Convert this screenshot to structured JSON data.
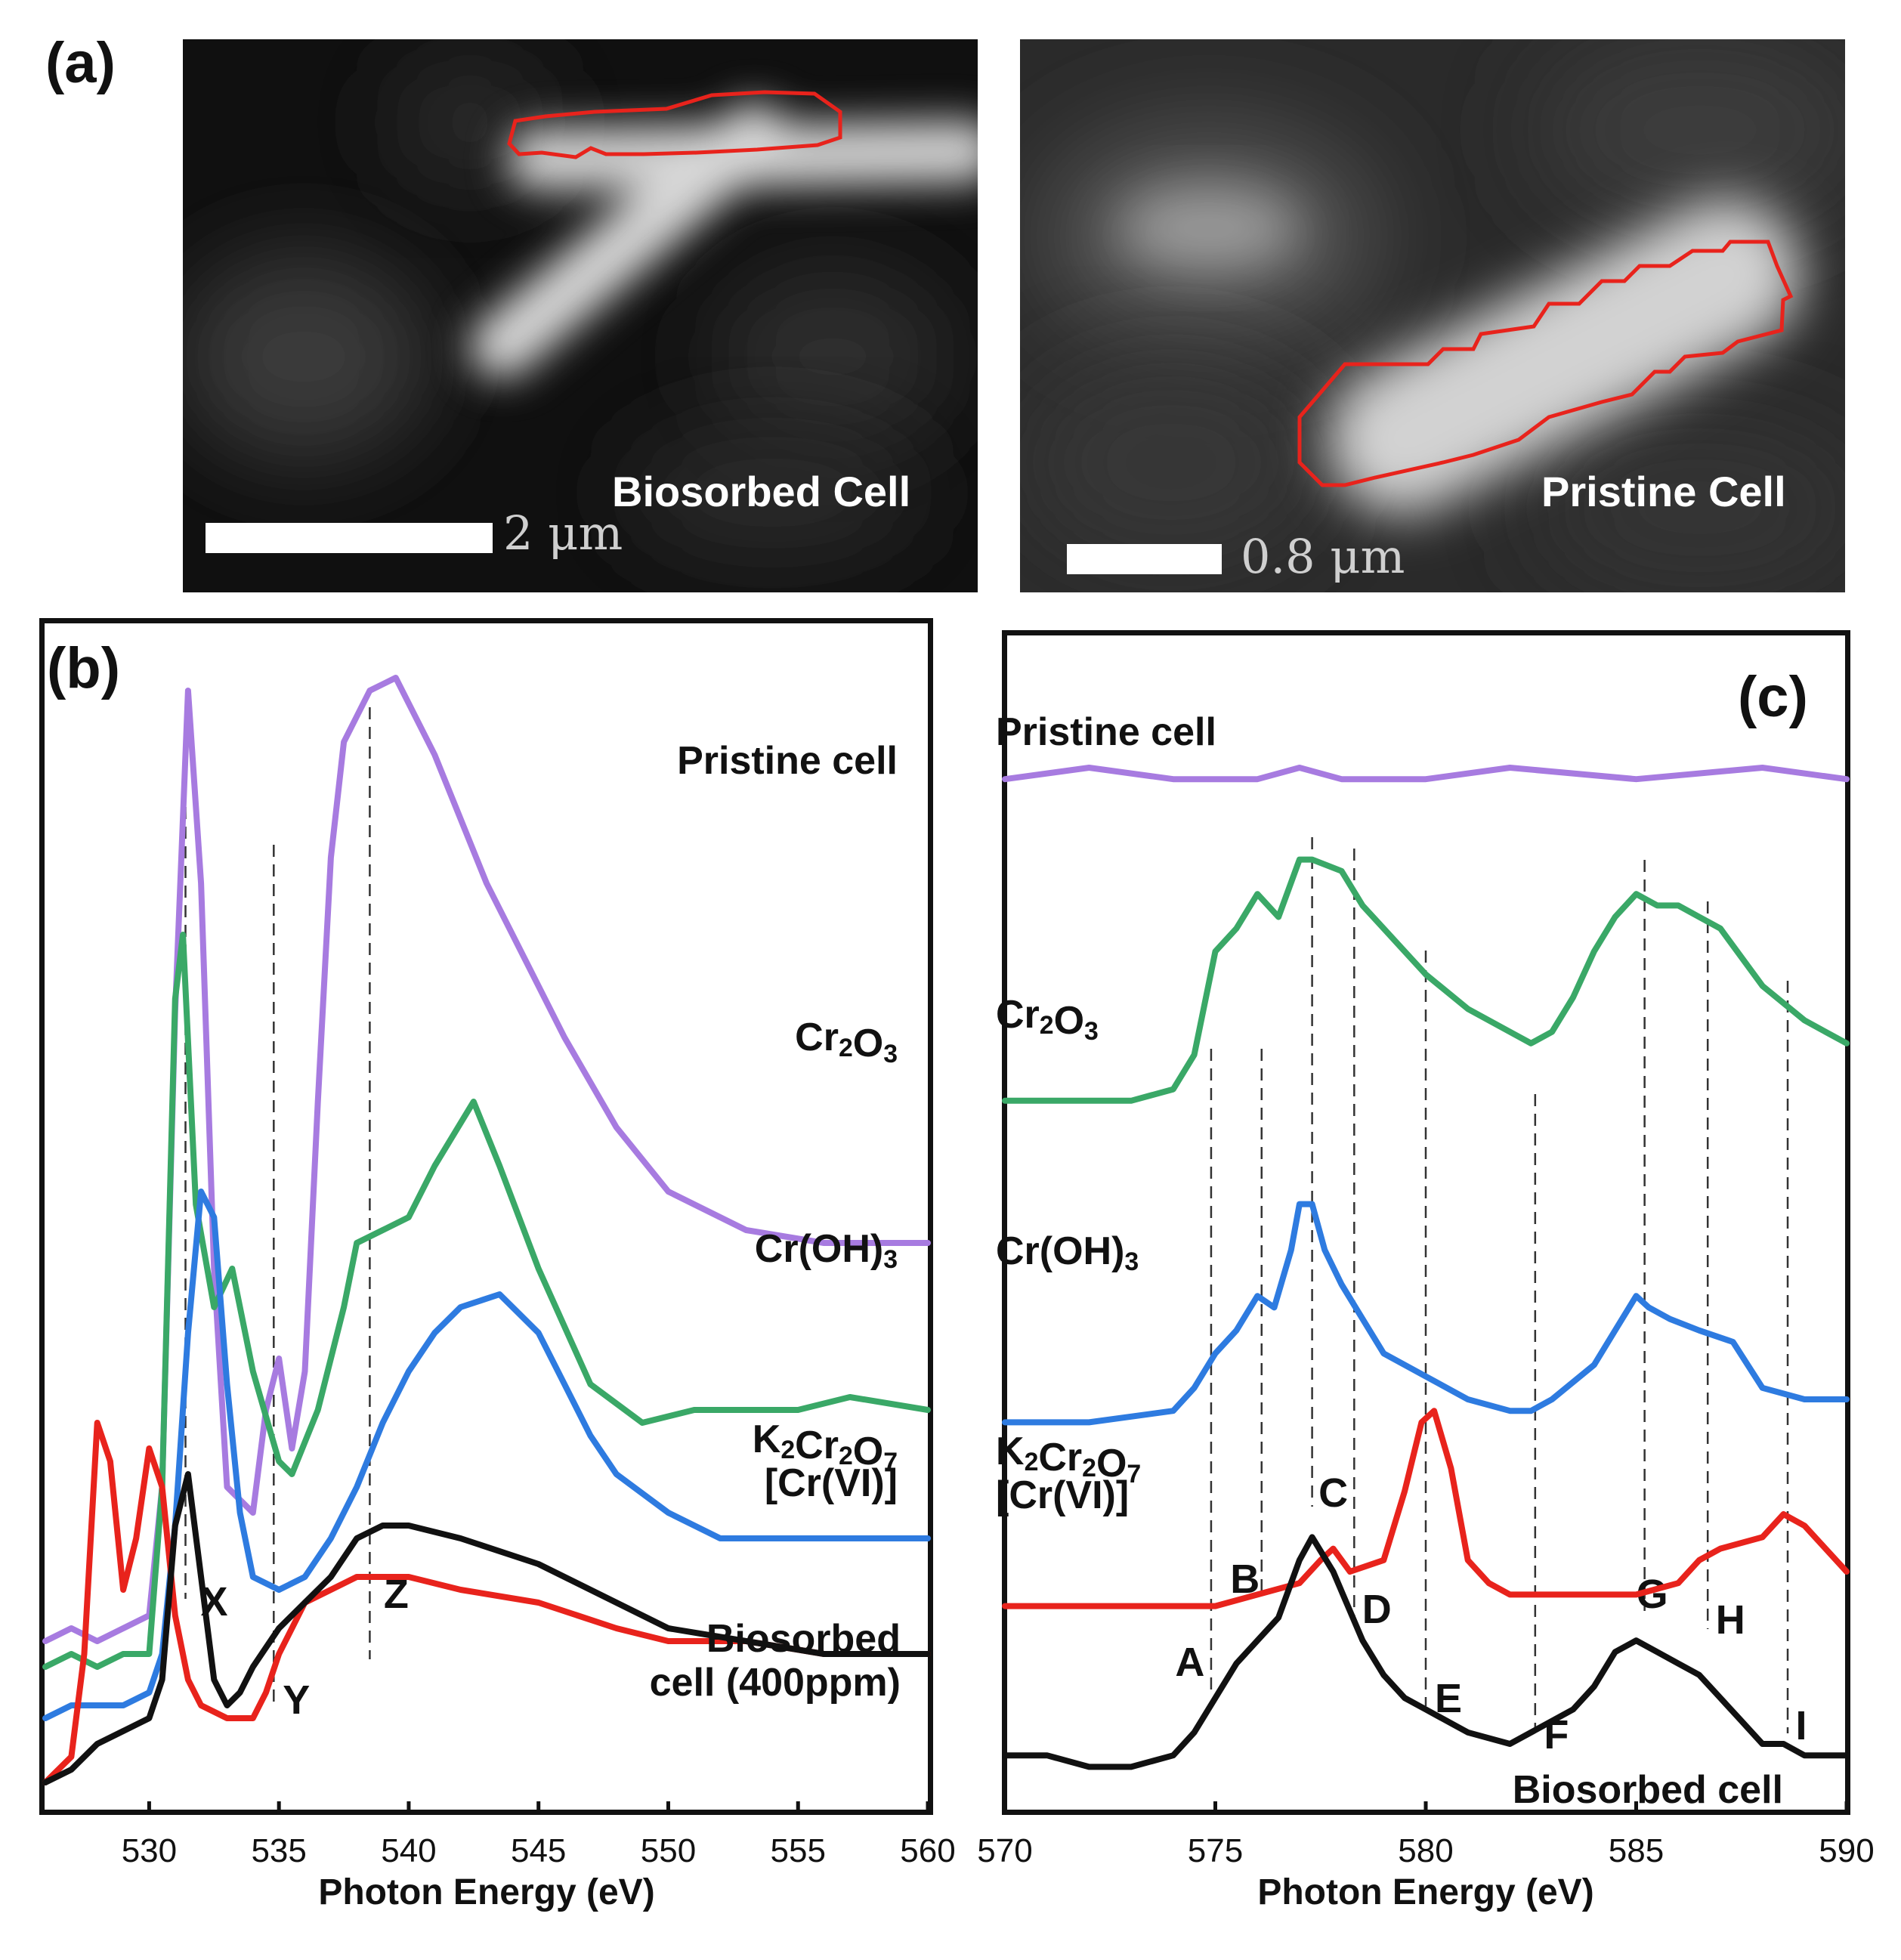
{
  "panel_a": {
    "letter": "(a)",
    "left_image": {
      "label": "Biosorbed Cell",
      "scale_text": "2 μm"
    },
    "right_image": {
      "label": "Pristine Cell",
      "scale_text": "0.8 μm"
    }
  },
  "chart_data": [
    {
      "panel": "(b)",
      "type": "line",
      "xlabel": "Photon Energy (eV)",
      "ylabel": "",
      "xlim": [
        526,
        560
      ],
      "xticks": [
        530,
        535,
        540,
        545,
        550,
        555,
        560
      ],
      "stacked_offset": true,
      "series": [
        {
          "name": "Pristine cell",
          "color": "#a77be0",
          "label_lines": [
            "Pristine cell"
          ],
          "x": [
            526,
            527,
            528,
            529,
            530,
            530.5,
            531,
            531.5,
            532,
            532.5,
            533,
            534,
            534.5,
            535,
            535.5,
            536,
            536.5,
            537,
            537.5,
            538.5,
            539.5,
            541,
            543,
            546,
            548,
            550,
            553,
            556,
            560
          ],
          "y": [
            0.13,
            0.14,
            0.13,
            0.14,
            0.15,
            0.25,
            0.62,
            0.87,
            0.72,
            0.42,
            0.25,
            0.23,
            0.31,
            0.35,
            0.28,
            0.34,
            0.55,
            0.74,
            0.83,
            0.87,
            0.88,
            0.82,
            0.72,
            0.6,
            0.53,
            0.48,
            0.45,
            0.44,
            0.44
          ]
        },
        {
          "name": "Cr2O3",
          "color": "#3aa867",
          "label_lines": [
            "Cr2O3"
          ],
          "x": [
            526,
            527,
            528,
            529,
            530,
            530.5,
            531,
            531.3,
            531.8,
            532.5,
            533.2,
            534,
            535,
            535.5,
            536.5,
            537.5,
            538,
            539,
            540,
            541,
            542.5,
            543.5,
            545,
            547,
            549,
            551,
            553,
            555,
            557,
            560
          ],
          "y": [
            0.11,
            0.12,
            0.11,
            0.12,
            0.12,
            0.25,
            0.63,
            0.68,
            0.47,
            0.39,
            0.42,
            0.34,
            0.27,
            0.26,
            0.31,
            0.39,
            0.44,
            0.45,
            0.46,
            0.5,
            0.55,
            0.5,
            0.42,
            0.33,
            0.3,
            0.31,
            0.31,
            0.31,
            0.32,
            0.31
          ]
        },
        {
          "name": "Cr(OH)3",
          "color": "#2e7be0",
          "label_lines": [
            "Cr(OH)3"
          ],
          "x": [
            526,
            527,
            528,
            529,
            530,
            530.5,
            531,
            531.5,
            532,
            532.5,
            533,
            533.5,
            534,
            535,
            536,
            537,
            538,
            539,
            540,
            541,
            542,
            543.5,
            545,
            546,
            547,
            548,
            550,
            552,
            555,
            560
          ],
          "y": [
            0.07,
            0.08,
            0.08,
            0.08,
            0.09,
            0.12,
            0.22,
            0.37,
            0.48,
            0.46,
            0.33,
            0.23,
            0.18,
            0.17,
            0.18,
            0.21,
            0.25,
            0.3,
            0.34,
            0.37,
            0.39,
            0.4,
            0.37,
            0.33,
            0.29,
            0.26,
            0.23,
            0.21,
            0.21,
            0.21
          ]
        },
        {
          "name": "K2Cr2O7 [Cr(VI)]",
          "color": "#e8231c",
          "label_lines": [
            "K2Cr2O7",
            "[Cr(VI)]"
          ],
          "x": [
            526,
            527,
            527.5,
            528,
            528.5,
            529,
            529.5,
            530,
            530.5,
            531,
            531.5,
            532,
            533,
            534,
            534.5,
            535,
            536,
            537,
            538,
            539,
            540,
            542,
            545,
            548,
            550,
            553,
            556,
            560
          ],
          "y": [
            0.02,
            0.04,
            0.12,
            0.3,
            0.27,
            0.17,
            0.21,
            0.28,
            0.25,
            0.15,
            0.1,
            0.08,
            0.07,
            0.07,
            0.09,
            0.12,
            0.16,
            0.17,
            0.18,
            0.18,
            0.18,
            0.17,
            0.16,
            0.14,
            0.13,
            0.13,
            0.12,
            0.12
          ]
        },
        {
          "name": "Biosorbed cell (400ppm)",
          "color": "#111111",
          "label_lines": [
            "Biosorbed",
            "cell (400ppm)"
          ],
          "x": [
            526,
            527,
            528,
            529,
            530,
            530.5,
            531,
            531.5,
            532,
            532.5,
            533,
            533.5,
            534,
            535,
            536,
            537,
            538,
            539,
            540,
            542,
            545,
            548,
            550,
            553,
            556,
            560
          ],
          "y": [
            0.02,
            0.03,
            0.05,
            0.06,
            0.07,
            0.1,
            0.22,
            0.26,
            0.18,
            0.1,
            0.08,
            0.09,
            0.11,
            0.14,
            0.16,
            0.18,
            0.21,
            0.22,
            0.22,
            0.21,
            0.19,
            0.16,
            0.14,
            0.13,
            0.12,
            0.12
          ]
        }
      ],
      "reference_lines": [
        {
          "x": 531.4,
          "label": "X"
        },
        {
          "x": 534.8,
          "label": "Y"
        },
        {
          "x": 538.5,
          "label": "Z"
        }
      ]
    },
    {
      "panel": "(c)",
      "type": "line",
      "xlabel": "Photon Energy (eV)",
      "ylabel": "",
      "xlim": [
        570,
        590
      ],
      "xticks": [
        570,
        575,
        580,
        585,
        590
      ],
      "stacked_offset": true,
      "series": [
        {
          "name": "Pristine cell",
          "color": "#a77be0",
          "label_lines": [
            "Pristine cell"
          ],
          "x": [
            570,
            572,
            574,
            576,
            577,
            578,
            580,
            582,
            585,
            588,
            590
          ],
          "y": [
            0.89,
            0.9,
            0.89,
            0.89,
            0.9,
            0.89,
            0.89,
            0.9,
            0.89,
            0.9,
            0.89
          ]
        },
        {
          "name": "Cr2O3",
          "color": "#3aa867",
          "label_lines": [
            "Cr2O3"
          ],
          "x": [
            570,
            572,
            573,
            574,
            574.5,
            575,
            575.5,
            576,
            576.5,
            577,
            577.3,
            578,
            578.5,
            579,
            580,
            581,
            582,
            582.5,
            583,
            583.5,
            584,
            584.5,
            585,
            585.5,
            586,
            586.5,
            587,
            588,
            589,
            590
          ],
          "y": [
            0.61,
            0.61,
            0.61,
            0.62,
            0.65,
            0.74,
            0.76,
            0.79,
            0.77,
            0.82,
            0.82,
            0.81,
            0.78,
            0.76,
            0.72,
            0.69,
            0.67,
            0.66,
            0.67,
            0.7,
            0.74,
            0.77,
            0.79,
            0.78,
            0.78,
            0.77,
            0.76,
            0.71,
            0.68,
            0.66
          ]
        },
        {
          "name": "Cr(OH)3",
          "color": "#2e7be0",
          "label_lines": [
            "Cr(OH)3"
          ],
          "x": [
            570,
            572,
            574,
            574.5,
            575,
            575.5,
            576,
            576.4,
            576.8,
            577,
            577.3,
            577.6,
            578,
            578.5,
            579,
            580,
            581,
            582,
            582.5,
            583,
            584,
            584.5,
            585,
            585.3,
            585.8,
            586.5,
            587.3,
            588,
            589,
            590
          ],
          "y": [
            0.33,
            0.33,
            0.34,
            0.36,
            0.39,
            0.41,
            0.44,
            0.43,
            0.48,
            0.52,
            0.52,
            0.48,
            0.45,
            0.42,
            0.39,
            0.37,
            0.35,
            0.34,
            0.34,
            0.35,
            0.38,
            0.41,
            0.44,
            0.43,
            0.42,
            0.41,
            0.4,
            0.36,
            0.35,
            0.35
          ]
        },
        {
          "name": "K2Cr2O7 [Cr(VI)]",
          "color": "#e8231c",
          "label_lines": [
            "K2Cr2O7",
            "[Cr(VI)]"
          ],
          "x": [
            570,
            572,
            574,
            575,
            576,
            577,
            577.5,
            577.8,
            578.2,
            579,
            579.5,
            579.9,
            580.2,
            580.6,
            581,
            581.5,
            582,
            583,
            584,
            585,
            586,
            586.5,
            587,
            588,
            588.5,
            589,
            589.5,
            590
          ],
          "y": [
            0.17,
            0.17,
            0.17,
            0.17,
            0.18,
            0.19,
            0.21,
            0.22,
            0.2,
            0.21,
            0.27,
            0.33,
            0.34,
            0.29,
            0.21,
            0.19,
            0.18,
            0.18,
            0.18,
            0.18,
            0.19,
            0.21,
            0.22,
            0.23,
            0.25,
            0.24,
            0.22,
            0.2
          ]
        },
        {
          "name": "Biosorbed cell",
          "color": "#111111",
          "label_lines": [
            "Biosorbed cell"
          ],
          "x": [
            570,
            571,
            572,
            573,
            574,
            574.5,
            575,
            575.5,
            576,
            576.5,
            577,
            577.3,
            577.8,
            578.5,
            579,
            579.5,
            580,
            581,
            582,
            582.5,
            583,
            583.5,
            584,
            584.5,
            585,
            585.5,
            586,
            586.5,
            587,
            587.5,
            588,
            588.5,
            589,
            590
          ],
          "y": [
            0.04,
            0.04,
            0.03,
            0.03,
            0.04,
            0.06,
            0.09,
            0.12,
            0.14,
            0.16,
            0.21,
            0.23,
            0.2,
            0.14,
            0.11,
            0.09,
            0.08,
            0.06,
            0.05,
            0.06,
            0.07,
            0.08,
            0.1,
            0.13,
            0.14,
            0.13,
            0.12,
            0.11,
            0.09,
            0.07,
            0.05,
            0.05,
            0.04,
            0.04
          ]
        }
      ],
      "reference_lines": [
        {
          "x": 574.9,
          "label": "A"
        },
        {
          "x": 576.1,
          "label": "B"
        },
        {
          "x": 577.3,
          "label": "C"
        },
        {
          "x": 578.3,
          "label": "D"
        },
        {
          "x": 580.0,
          "label": "E"
        },
        {
          "x": 582.6,
          "label": "F"
        },
        {
          "x": 585.2,
          "label": "G"
        },
        {
          "x": 586.7,
          "label": "H"
        },
        {
          "x": 588.6,
          "label": "I"
        }
      ]
    }
  ]
}
